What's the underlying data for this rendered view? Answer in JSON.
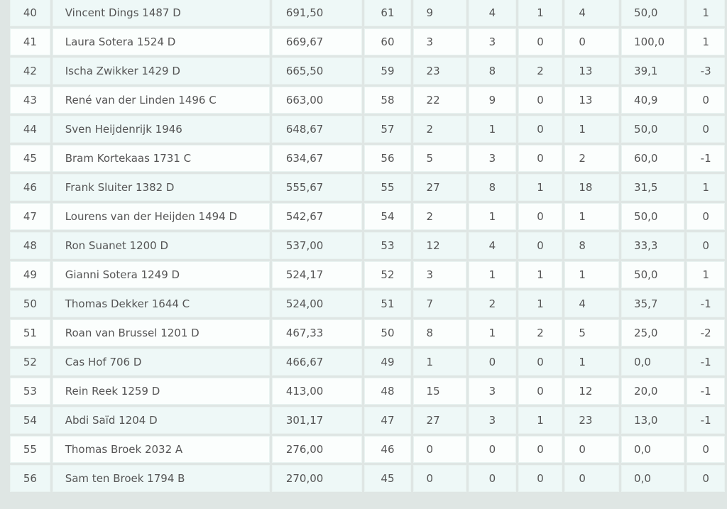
{
  "ranking": {
    "rows": [
      [
        "40",
        "Vincent Dings 1487 D",
        "691,50",
        "61",
        "9",
        "4",
        "1",
        "4",
        "50,0",
        "1"
      ],
      [
        "41",
        "Laura Sotera 1524 D",
        "669,67",
        "60",
        "3",
        "3",
        "0",
        "0",
        "100,0",
        "1"
      ],
      [
        "42",
        "Ischa Zwikker 1429 D",
        "665,50",
        "59",
        "23",
        "8",
        "2",
        "13",
        "39,1",
        "-3"
      ],
      [
        "43",
        "René van der Linden 1496 C",
        "663,00",
        "58",
        "22",
        "9",
        "0",
        "13",
        "40,9",
        "0"
      ],
      [
        "44",
        "Sven Heijdenrijk 1946",
        "648,67",
        "57",
        "2",
        "1",
        "0",
        "1",
        "50,0",
        "0"
      ],
      [
        "45",
        "Bram Kortekaas 1731 C",
        "634,67",
        "56",
        "5",
        "3",
        "0",
        "2",
        "60,0",
        "-1"
      ],
      [
        "46",
        "Frank Sluiter 1382 D",
        "555,67",
        "55",
        "27",
        "8",
        "1",
        "18",
        "31,5",
        "1"
      ],
      [
        "47",
        "Lourens van der Heijden 1494 D",
        "542,67",
        "54",
        "2",
        "1",
        "0",
        "1",
        "50,0",
        "0"
      ],
      [
        "48",
        "Ron Suanet 1200 D",
        "537,00",
        "53",
        "12",
        "4",
        "0",
        "8",
        "33,3",
        "0"
      ],
      [
        "49",
        "Gianni Sotera 1249 D",
        "524,17",
        "52",
        "3",
        "1",
        "1",
        "1",
        "50,0",
        "1"
      ],
      [
        "50",
        "Thomas Dekker 1644 C",
        "524,00",
        "51",
        "7",
        "2",
        "1",
        "4",
        "35,7",
        "-1"
      ],
      [
        "51",
        "Roan van Brussel 1201 D",
        "467,33",
        "50",
        "8",
        "1",
        "2",
        "5",
        "25,0",
        "-2"
      ],
      [
        "52",
        "Cas Hof 706 D",
        "466,67",
        "49",
        "1",
        "0",
        "0",
        "1",
        "0,0",
        "-1"
      ],
      [
        "53",
        "Rein Reek 1259 D",
        "413,00",
        "48",
        "15",
        "3",
        "0",
        "12",
        "20,0",
        "-1"
      ],
      [
        "54",
        "Abdi Saïd 1204 D",
        "301,17",
        "47",
        "27",
        "3",
        "1",
        "23",
        "13,0",
        "-1"
      ],
      [
        "55",
        "Thomas Broek 2032 A",
        "276,00",
        "46",
        "0",
        "0",
        "0",
        "0",
        "0,0",
        "0"
      ],
      [
        "56",
        "Sam ten Broek 1794 B",
        "270,00",
        "45",
        "0",
        "0",
        "0",
        "0",
        "0,0",
        "0"
      ]
    ]
  }
}
